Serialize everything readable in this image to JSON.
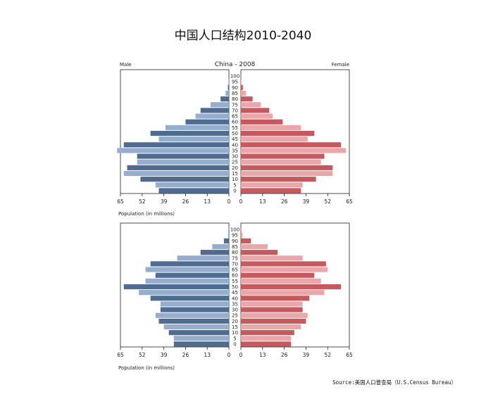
{
  "title": "中国人口结构2010-2040",
  "source": "Source:美国人口普查局（U.S.Census Bureau）",
  "colors": {
    "male_dark": "#4f6b8f",
    "male_light": "#95aed0",
    "female_dark": "#c6595e",
    "female_light": "#eba6aa",
    "axis": "#222222"
  },
  "chart_data": [
    {
      "type": "bar",
      "subtype": "population-pyramid",
      "title": "China - 2008",
      "left_label": "Male",
      "right_label": "Female",
      "xlabel": "Population (in millions)",
      "xlim": [
        0,
        65
      ],
      "x_ticks": [
        65,
        52,
        39,
        26,
        13,
        0
      ],
      "categories": [
        "0",
        "5",
        "10",
        "15",
        "20",
        "25",
        "30",
        "35",
        "40",
        "45",
        "50",
        "55",
        "60",
        "65",
        "70",
        "75",
        "80",
        "85",
        "90",
        "95",
        "100"
      ],
      "series": [
        {
          "name": "Male",
          "values": [
            42,
            44,
            53,
            63,
            61,
            55,
            55,
            67,
            63,
            42,
            47,
            38,
            26,
            20,
            17,
            11,
            5,
            2,
            0.6,
            0.2,
            0.1
          ]
        },
        {
          "name": "Female",
          "values": [
            36,
            37,
            45,
            55,
            55,
            48,
            50,
            63,
            60,
            40,
            44,
            36,
            25,
            19,
            17,
            12,
            7,
            3,
            1.2,
            0.3,
            0.1
          ]
        }
      ]
    },
    {
      "type": "bar",
      "subtype": "population-pyramid",
      "title": "",
      "left_label": "",
      "right_label": "",
      "xlabel": "Population (in millions)",
      "xlim": [
        0,
        65
      ],
      "x_ticks": [
        65,
        52,
        39,
        26,
        13,
        0
      ],
      "categories": [
        "0",
        "5",
        "10",
        "15",
        "20",
        "25",
        "30",
        "35",
        "40",
        "45",
        "50",
        "55",
        "60",
        "65",
        "70",
        "75",
        "80",
        "85",
        "90",
        "95",
        "100"
      ],
      "series": [
        {
          "name": "Male",
          "values": [
            33,
            33,
            36,
            39,
            42,
            44,
            41,
            41,
            47,
            54,
            63,
            50,
            44,
            50,
            47,
            31,
            17,
            10,
            3,
            0.5,
            0.2
          ]
        },
        {
          "name": "Female",
          "values": [
            30,
            30,
            32,
            36,
            39,
            40,
            37,
            37,
            41,
            50,
            60,
            48,
            44,
            52,
            51,
            37,
            22,
            16,
            6,
            1,
            0.2
          ]
        }
      ]
    }
  ]
}
